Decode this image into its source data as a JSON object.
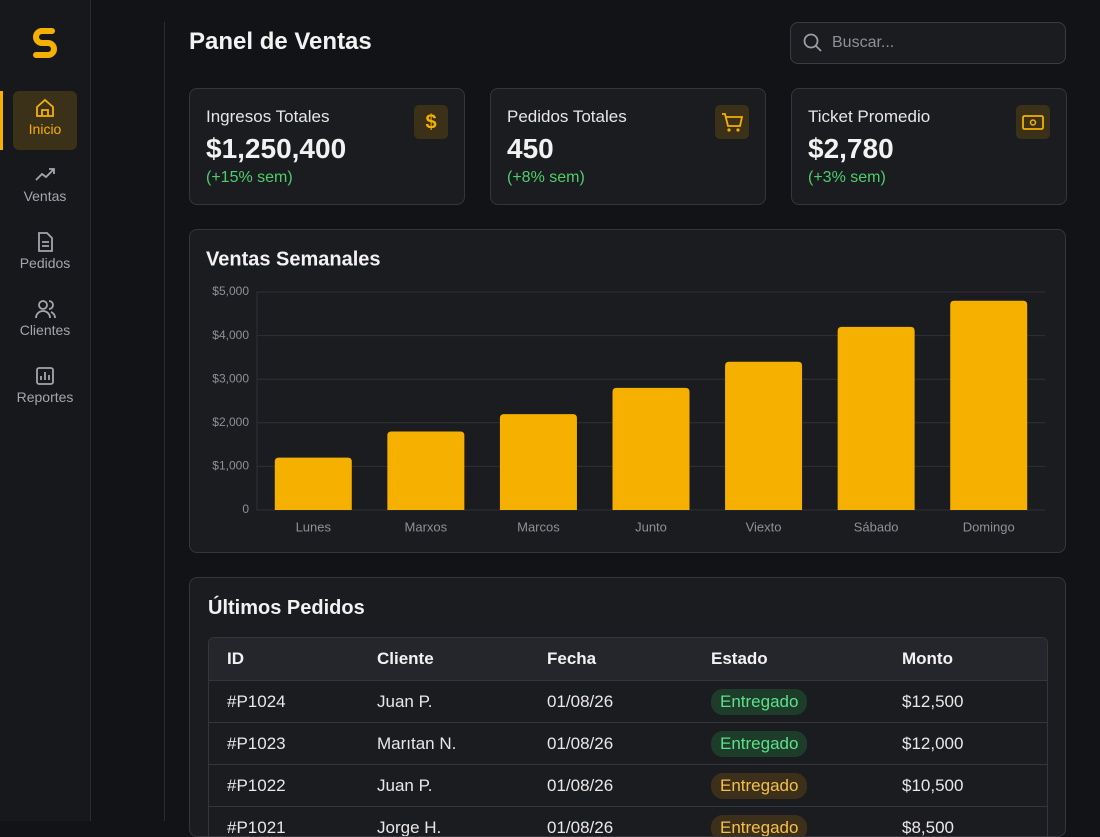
{
  "sidebar": {
    "items": [
      {
        "label": "Inicio",
        "active": true
      },
      {
        "label": "Ventas",
        "active": false
      },
      {
        "label": "Pedidos",
        "active": false
      },
      {
        "label": "Clientes",
        "active": false
      },
      {
        "label": "Reportes",
        "active": false
      }
    ]
  },
  "header": {
    "title": "Panel de Ventas",
    "search_placeholder": "Buscar..."
  },
  "cards": [
    {
      "label": "Ingresos Totales",
      "value": "$1,250,400",
      "change": "(+15% sem)"
    },
    {
      "label": "Pedidos Totales",
      "value": "450",
      "change": "(+8% sem)"
    },
    {
      "label": "Ticket Promedio",
      "value": "$2,780",
      "change": "(+3% sem)"
    }
  ],
  "chart_data": {
    "type": "bar",
    "title": "Ventas Semanales",
    "categories": [
      "Lunes",
      "Marxos",
      "Marcos",
      "Junto",
      "Viexto",
      "Sábado",
      "Domingo"
    ],
    "values": [
      1200,
      1800,
      2200,
      2800,
      3400,
      4200,
      4800
    ],
    "color": "#f5b000",
    "ylim": [
      0,
      5000
    ],
    "yticks": [
      0,
      {
        "value": 1000,
        "label": "$1,000"
      },
      {
        "value": 2000,
        "label": "$2,000"
      },
      {
        "value": 3000,
        "label": "$3,000"
      },
      {
        "value": 4000,
        "label": "$4,000"
      },
      {
        "value": 5000,
        "label": "$5,000"
      }
    ],
    "grid": true
  },
  "table": {
    "title": "Últimos Pedidos",
    "columns": [
      "ID",
      "Cliente",
      "Fecha",
      "Estado",
      "Monto"
    ],
    "rows": [
      [
        "#P1024",
        "Juan P.",
        "01/08/26",
        "Entregado",
        "$12,500"
      ],
      [
        "#P1023",
        "Marıtan N.",
        "01/08/26",
        "Entregado",
        "$12,000"
      ],
      [
        "#P1022",
        "Juan P.",
        "01/08/26",
        "Entregado",
        "$10,500"
      ],
      [
        "#P1021",
        "Jorge H.",
        "01/08/26",
        "Entregado",
        "$8,500"
      ]
    ],
    "status_tones": [
      "green",
      "green",
      "amber",
      "amber"
    ]
  }
}
